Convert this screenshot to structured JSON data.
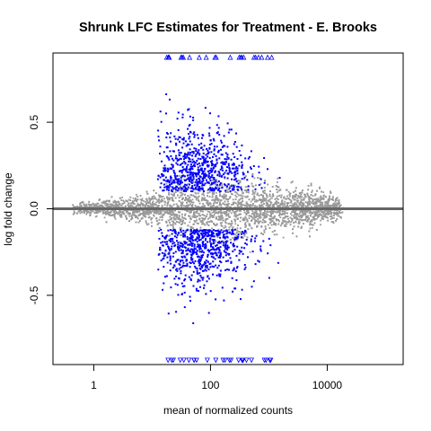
{
  "chart_data": {
    "type": "scatter",
    "title": "Shrunk LFC Estimates for Treatment - E. Brooks",
    "xlabel": "mean of normalized counts",
    "ylabel": "log fold change",
    "x_scale": "log10",
    "xlim": [
      0.2,
      200000
    ],
    "ylim": [
      -0.9,
      0.9
    ],
    "x_ticks": [
      {
        "value": 1,
        "label": "1"
      },
      {
        "value": 100,
        "label": "100"
      },
      {
        "value": 10000,
        "label": "10000"
      }
    ],
    "y_ticks": [
      {
        "value": -0.5,
        "label": "-0.5"
      },
      {
        "value": 0.0,
        "label": "0.0"
      },
      {
        "value": 0.5,
        "label": "0.5"
      }
    ],
    "reference_line": {
      "y": 0,
      "color": "#666666"
    },
    "clip_limits": {
      "upper": 0.875,
      "lower": -0.875
    },
    "grid": false,
    "legend": "none",
    "series": [
      {
        "color": "#9a9a9a",
        "marker": "point"
      },
      {
        "color": "#0000ff",
        "marker": "point"
      }
    ],
    "sample_points": [
      {
        "x": 0.5,
        "y": 0.0
      },
      {
        "x": 1,
        "y": 0.01
      },
      {
        "x": 10,
        "y": 0.05
      },
      {
        "x": 100,
        "y": 0.25
      },
      {
        "x": 100,
        "y": -0.2
      },
      {
        "x": 300,
        "y": 0.15
      },
      {
        "x": 300,
        "y": -0.18
      },
      {
        "x": 1000,
        "y": 0.1
      },
      {
        "x": 30000,
        "y": 0.12
      }
    ]
  }
}
